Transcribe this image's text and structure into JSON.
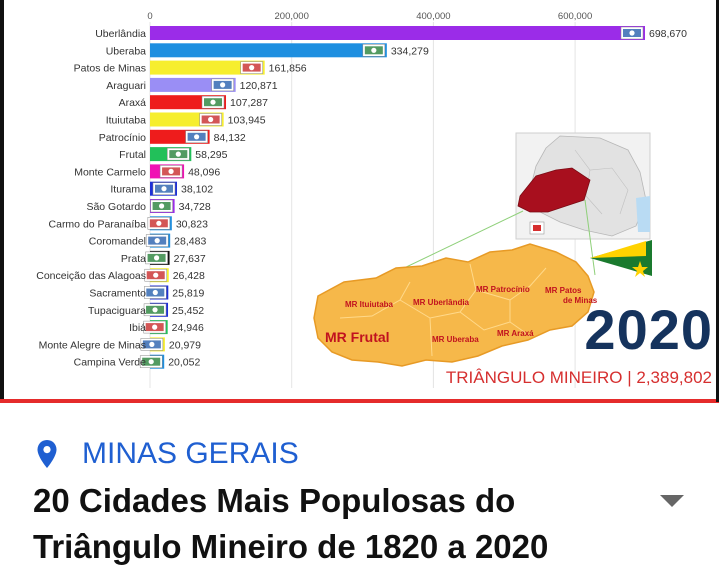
{
  "location": {
    "label": "MINAS GERAIS",
    "icon": "map-pin-icon"
  },
  "video": {
    "title": "20 Cidades Mais Populosas do Triângulo Mineiro de 1820 a 2020",
    "year": "2020",
    "total": "TRIÂNGULO MINEIRO | 2,389,802"
  },
  "map": {
    "regions": [
      "MR Ituiutaba",
      "MR Uberlândia",
      "MR Patrocínio",
      "MR Patos de Minas",
      "MR Frutal",
      "MR Uberaba",
      "MR Araxá"
    ]
  },
  "chart_data": {
    "type": "bar",
    "orientation": "horizontal",
    "x_ticks": [
      0,
      200000,
      400000,
      600000
    ],
    "x_tick_labels": [
      "0",
      "200,000",
      "400,000",
      "600,000"
    ],
    "xlim": [
      0,
      698670
    ],
    "series": [
      {
        "values": [
          698670,
          334279,
          161856,
          120871,
          107287,
          103945,
          84132,
          58295,
          48096,
          38102,
          34728,
          30823,
          28483,
          27637,
          26428,
          25819,
          25452,
          24946,
          20979,
          20052
        ],
        "labels": [
          "698,670",
          "334,279",
          "161,856",
          "120,871",
          "107,287",
          "103,945",
          "84,132",
          "58,295",
          "48,096",
          "38,102",
          "34,728",
          "30,823",
          "28,483",
          "27,637",
          "26,428",
          "25,819",
          "25,452",
          "24,946",
          "20,979",
          "20,052"
        ]
      }
    ],
    "categories": [
      "Uberlândia",
      "Uberaba",
      "Patos de Minas",
      "Araguari",
      "Araxá",
      "Ituiutaba",
      "Patrocínio",
      "Frutal",
      "Monte Carmelo",
      "Iturama",
      "São Gotardo",
      "Carmo do Paranaíba",
      "Coromandel",
      "Prata",
      "Conceição das Alagoas",
      "Sacramento",
      "Tupaciguara",
      "Ibiá",
      "Monte Alegre de Minas",
      "Campina Verde"
    ],
    "colors": [
      "#9b2ce8",
      "#1e8fe0",
      "#f6ee2e",
      "#9a8ef5",
      "#ee1c1c",
      "#f6ee2e",
      "#ee1c1c",
      "#22c05a",
      "#f012b4",
      "#1d2fd8",
      "#9b2ce8",
      "#1e8fe0",
      "#1e8fe0",
      "#111111",
      "#f6ee2e",
      "#1d2fd8",
      "#1d2fd8",
      "#22c05a",
      "#f6ee2e",
      "#1e8fe0"
    ]
  }
}
